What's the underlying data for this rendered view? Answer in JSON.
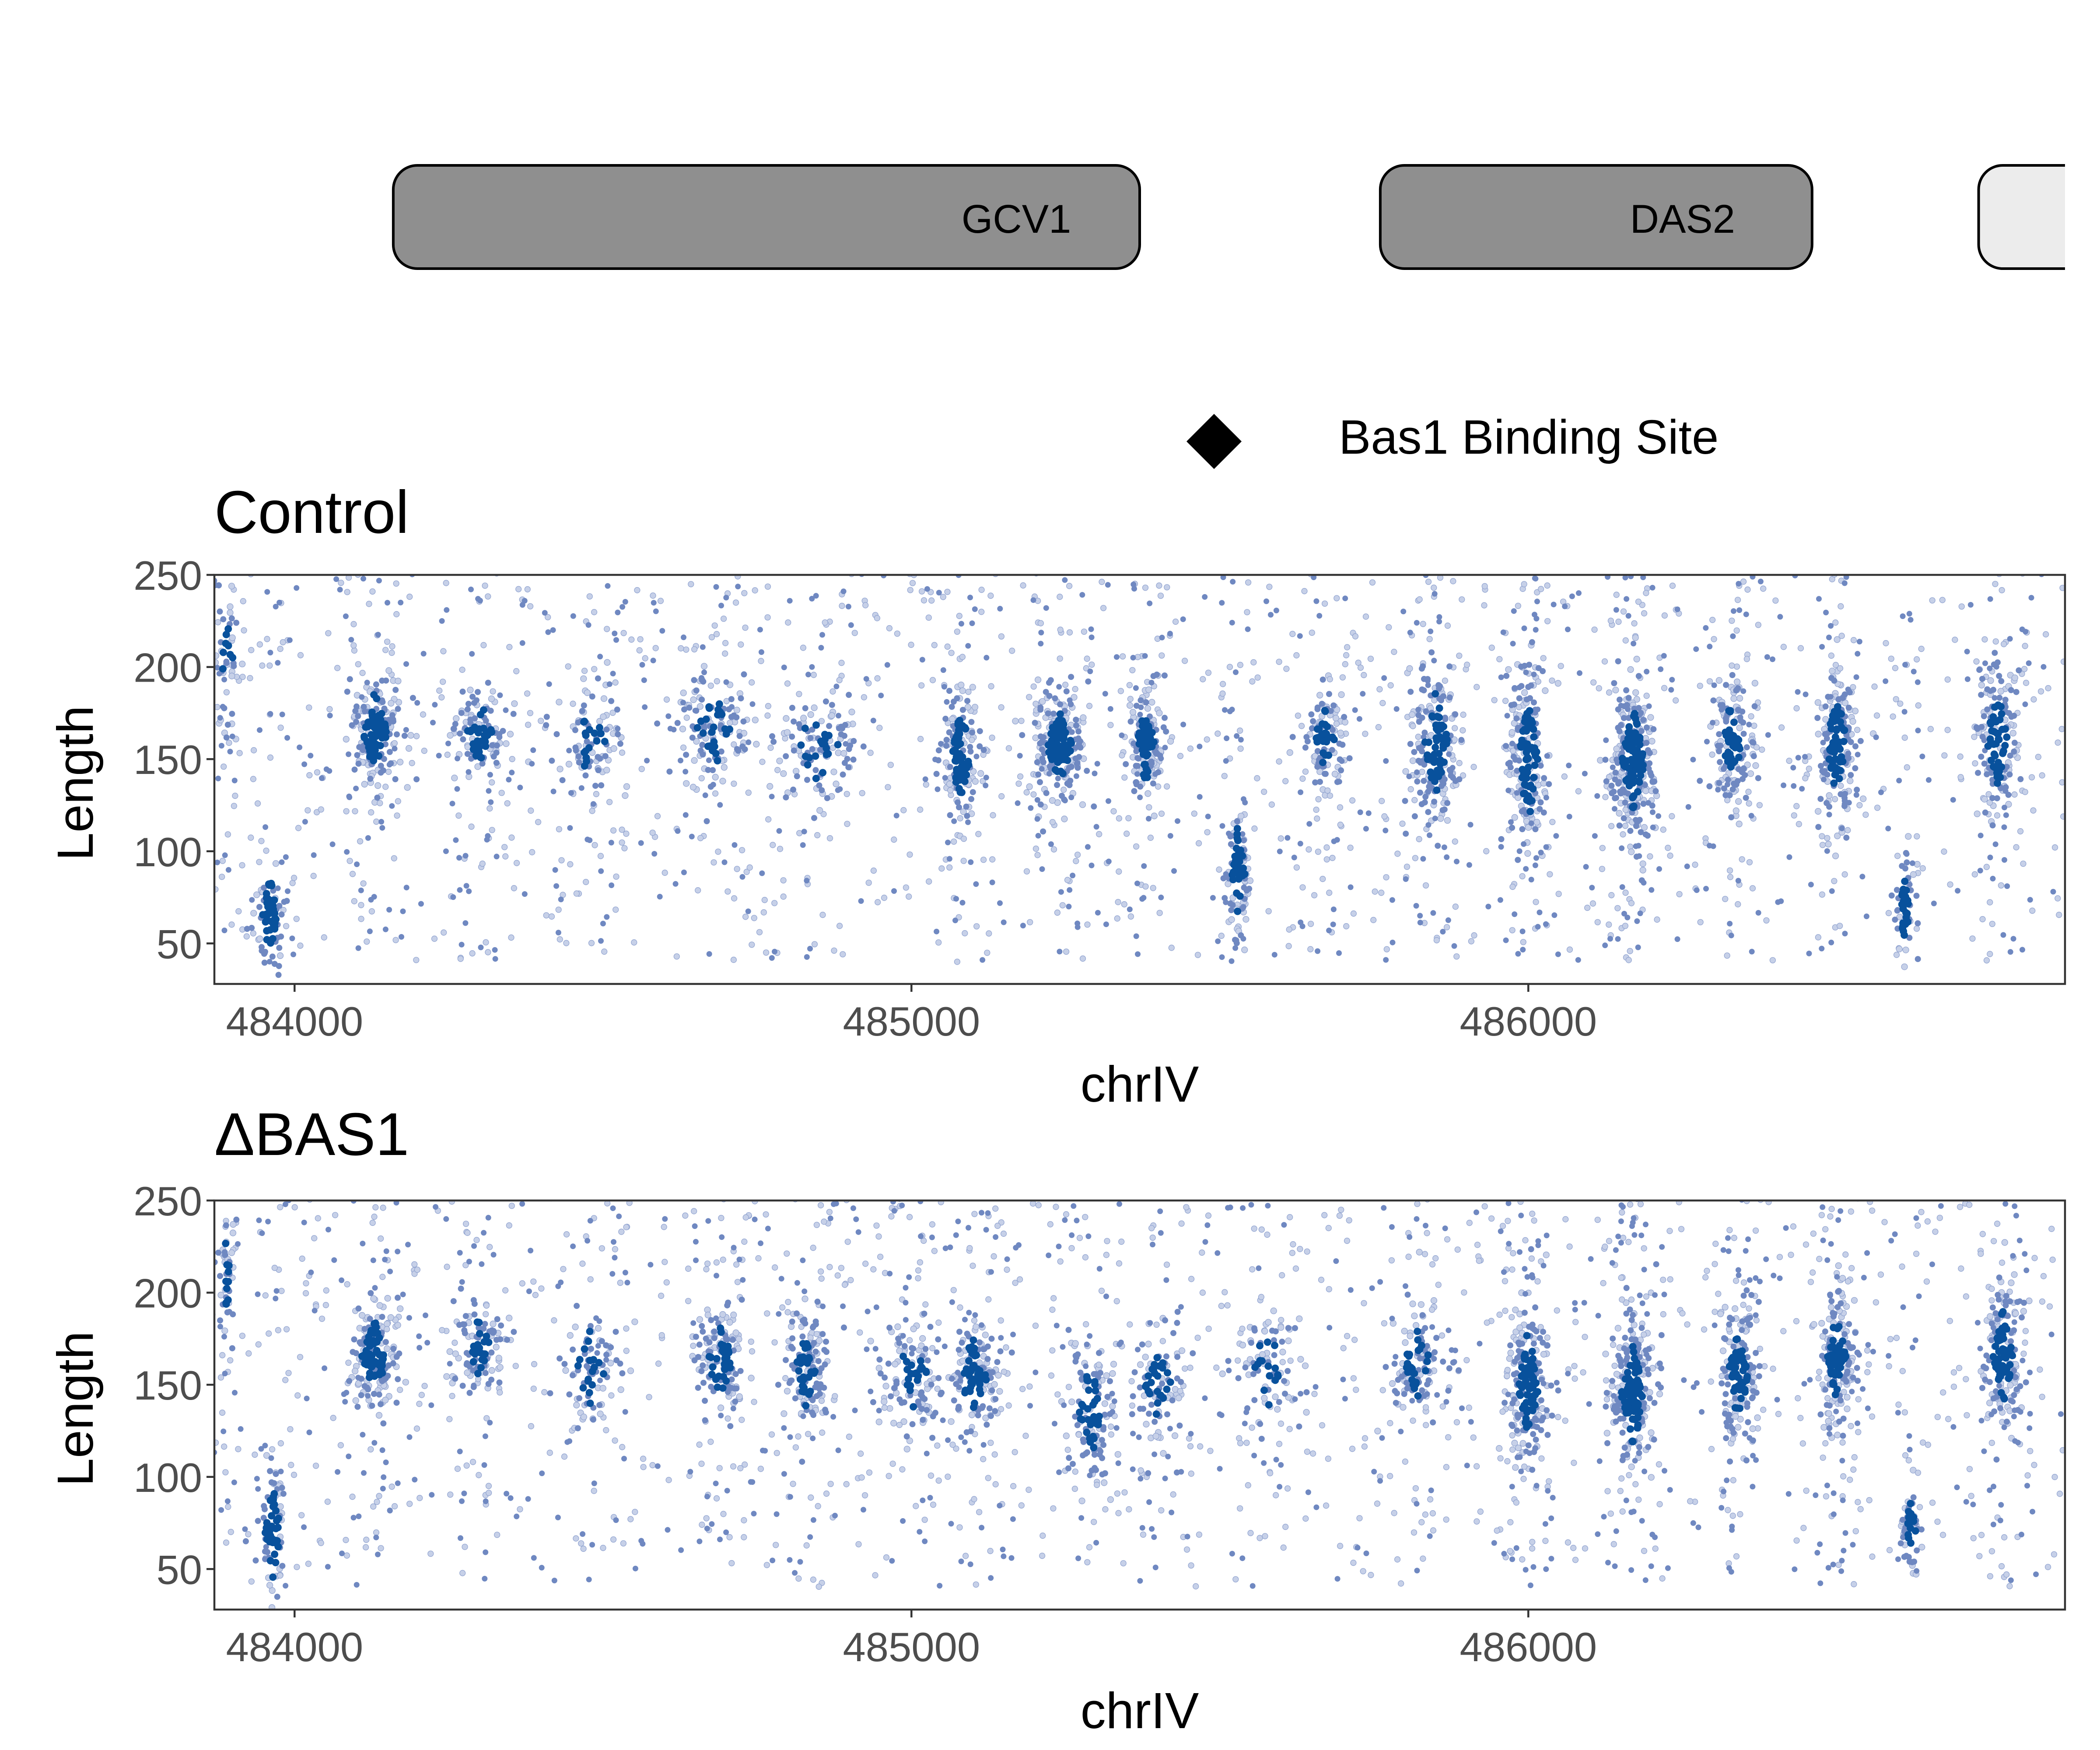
{
  "genes": [
    {
      "name": "GCV1",
      "start": 484160,
      "end": 485370,
      "label_pos": 485170,
      "fill": "#8f8f8f"
    },
    {
      "name": "DAS2",
      "start": 485760,
      "end": 486460,
      "label_pos": 486250,
      "fill": "#8f8f8f"
    },
    {
      "name": "",
      "start": 486730,
      "end": 487000,
      "label_pos": null,
      "fill": "#ececec"
    }
  ],
  "legend": {
    "symbol": "diamond",
    "label": "Bas1 Binding Site"
  },
  "colors": {
    "dark": "#08519c",
    "mid": "#6f88c1",
    "light": "#c6d0e8",
    "panel_border": "#333333",
    "gene_border": "#000000"
  },
  "chart_data": [
    {
      "type": "scatter",
      "title": "Control",
      "xlabel": "chrIV",
      "ylabel": "Length",
      "xlim": [
        483870,
        486870
      ],
      "ylim": [
        28,
        250
      ],
      "xticks": [
        484000,
        485000,
        486000
      ],
      "yticks": [
        50,
        100,
        150,
        200,
        250
      ],
      "grid": false,
      "clusters": [
        {
          "x": 483960,
          "y": 65,
          "sx": 12,
          "sy": 15,
          "n": 70,
          "w": 1.0
        },
        {
          "x": 484130,
          "y": 165,
          "sx": 20,
          "sy": 15,
          "n": 160,
          "w": 0.9
        },
        {
          "x": 484300,
          "y": 165,
          "sx": 22,
          "sy": 12,
          "n": 110,
          "w": 0.55
        },
        {
          "x": 484480,
          "y": 160,
          "sx": 25,
          "sy": 15,
          "n": 90,
          "w": 0.45
        },
        {
          "x": 484680,
          "y": 165,
          "sx": 30,
          "sy": 15,
          "n": 110,
          "w": 0.5
        },
        {
          "x": 484850,
          "y": 158,
          "sx": 35,
          "sy": 15,
          "n": 110,
          "w": 0.45
        },
        {
          "x": 485080,
          "y": 152,
          "sx": 16,
          "sy": 18,
          "n": 130,
          "w": 0.9
        },
        {
          "x": 485240,
          "y": 158,
          "sx": 20,
          "sy": 15,
          "n": 200,
          "w": 0.95
        },
        {
          "x": 485380,
          "y": 158,
          "sx": 14,
          "sy": 15,
          "n": 140,
          "w": 0.9
        },
        {
          "x": 485530,
          "y": 88,
          "sx": 10,
          "sy": 20,
          "n": 90,
          "w": 0.95
        },
        {
          "x": 485670,
          "y": 162,
          "sx": 16,
          "sy": 12,
          "n": 100,
          "w": 0.8
        },
        {
          "x": 485850,
          "y": 158,
          "sx": 20,
          "sy": 20,
          "n": 170,
          "w": 0.85
        },
        {
          "x": 486000,
          "y": 150,
          "sx": 16,
          "sy": 25,
          "n": 190,
          "w": 0.9
        },
        {
          "x": 486170,
          "y": 150,
          "sx": 18,
          "sy": 20,
          "n": 240,
          "w": 1.0
        },
        {
          "x": 486330,
          "y": 158,
          "sx": 16,
          "sy": 18,
          "n": 140,
          "w": 0.85
        },
        {
          "x": 486500,
          "y": 158,
          "sx": 16,
          "sy": 20,
          "n": 160,
          "w": 0.85
        },
        {
          "x": 486610,
          "y": 70,
          "sx": 8,
          "sy": 15,
          "n": 50,
          "w": 0.95
        },
        {
          "x": 486760,
          "y": 160,
          "sx": 16,
          "sy": 20,
          "n": 140,
          "w": 0.85
        },
        {
          "x": 483890,
          "y": 205,
          "sx": 10,
          "sy": 22,
          "n": 50,
          "w": 0.5
        }
      ],
      "background_points": 1000
    },
    {
      "type": "scatter",
      "title": "ΔBAS1",
      "xlabel": "chrIV",
      "ylabel": "Length",
      "xlim": [
        483870,
        486870
      ],
      "ylim": [
        28,
        250
      ],
      "xticks": [
        484000,
        485000,
        486000
      ],
      "yticks": [
        50,
        100,
        150,
        200,
        250
      ],
      "grid": false,
      "clusters": [
        {
          "x": 483965,
          "y": 70,
          "sx": 12,
          "sy": 18,
          "n": 80,
          "w": 1.0
        },
        {
          "x": 484130,
          "y": 165,
          "sx": 20,
          "sy": 15,
          "n": 160,
          "w": 0.9
        },
        {
          "x": 484300,
          "y": 170,
          "sx": 20,
          "sy": 12,
          "n": 100,
          "w": 0.6
        },
        {
          "x": 484480,
          "y": 160,
          "sx": 25,
          "sy": 15,
          "n": 80,
          "w": 0.45
        },
        {
          "x": 484690,
          "y": 162,
          "sx": 20,
          "sy": 15,
          "n": 130,
          "w": 0.75
        },
        {
          "x": 484830,
          "y": 158,
          "sx": 18,
          "sy": 15,
          "n": 120,
          "w": 0.75
        },
        {
          "x": 485000,
          "y": 155,
          "sx": 25,
          "sy": 15,
          "n": 110,
          "w": 0.55
        },
        {
          "x": 485100,
          "y": 155,
          "sx": 22,
          "sy": 15,
          "n": 130,
          "w": 0.8
        },
        {
          "x": 485290,
          "y": 135,
          "sx": 18,
          "sy": 20,
          "n": 120,
          "w": 0.85
        },
        {
          "x": 485400,
          "y": 150,
          "sx": 20,
          "sy": 15,
          "n": 90,
          "w": 0.6
        },
        {
          "x": 485580,
          "y": 160,
          "sx": 30,
          "sy": 15,
          "n": 80,
          "w": 0.45
        },
        {
          "x": 485820,
          "y": 162,
          "sx": 20,
          "sy": 15,
          "n": 110,
          "w": 0.65
        },
        {
          "x": 486000,
          "y": 150,
          "sx": 16,
          "sy": 22,
          "n": 180,
          "w": 0.9
        },
        {
          "x": 486170,
          "y": 145,
          "sx": 18,
          "sy": 20,
          "n": 220,
          "w": 1.0
        },
        {
          "x": 486340,
          "y": 155,
          "sx": 16,
          "sy": 18,
          "n": 140,
          "w": 0.85
        },
        {
          "x": 486500,
          "y": 165,
          "sx": 14,
          "sy": 18,
          "n": 160,
          "w": 0.9
        },
        {
          "x": 486620,
          "y": 72,
          "sx": 8,
          "sy": 12,
          "n": 50,
          "w": 0.95
        },
        {
          "x": 486770,
          "y": 165,
          "sx": 16,
          "sy": 20,
          "n": 150,
          "w": 0.85
        },
        {
          "x": 483890,
          "y": 215,
          "sx": 8,
          "sy": 18,
          "n": 45,
          "w": 0.5
        }
      ],
      "background_points": 950
    }
  ]
}
